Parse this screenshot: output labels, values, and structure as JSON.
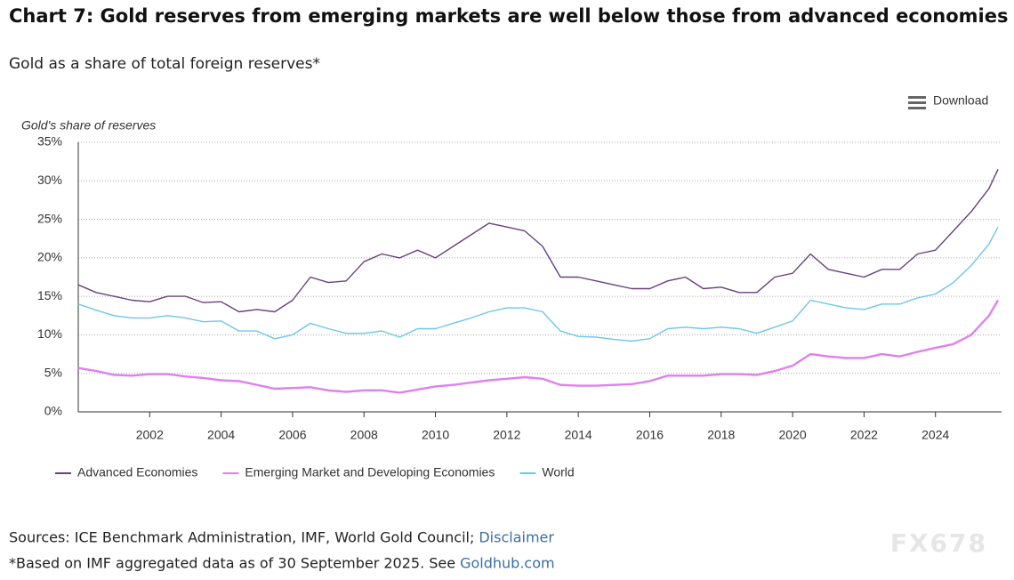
{
  "chart_data": {
    "type": "line",
    "title": "Chart 7: Gold reserves from emerging markets are well below those from advanced economies",
    "subtitle": "Gold as a share of total foreign reserves*",
    "ylabel": "Gold's share of reserves",
    "x": [
      2000,
      2000.5,
      2001,
      2001.5,
      2002,
      2002.5,
      2003,
      2003.5,
      2004,
      2004.5,
      2005,
      2005.5,
      2006,
      2006.5,
      2007,
      2007.5,
      2008,
      2008.5,
      2009,
      2009.5,
      2010,
      2010.5,
      2011,
      2011.5,
      2012,
      2012.5,
      2013,
      2013.5,
      2014,
      2014.5,
      2015,
      2015.5,
      2016,
      2016.5,
      2017,
      2017.5,
      2018,
      2018.5,
      2019,
      2019.5,
      2020,
      2020.5,
      2021,
      2021.5,
      2022,
      2022.5,
      2023,
      2023.5,
      2024,
      2024.5,
      2025,
      2025.5,
      2025.75
    ],
    "series": [
      {
        "name": "Advanced Economies",
        "color": "#6b3f7d",
        "width": 1.4,
        "values": [
          16.5,
          15.5,
          15,
          14.5,
          14.3,
          15,
          15,
          14.2,
          14.3,
          13,
          13.3,
          13,
          14.5,
          17.5,
          16.8,
          17,
          19.5,
          20.5,
          20,
          21,
          20,
          21.5,
          23,
          24.5,
          24,
          23.5,
          21.5,
          17.5,
          17.5,
          17,
          16.5,
          16,
          16,
          17,
          17.5,
          16,
          16.2,
          15.5,
          15.5,
          17.5,
          18,
          20.5,
          18.5,
          18,
          17.5,
          18.5,
          18.5,
          20.5,
          21,
          23.5,
          26,
          29,
          31.5
        ]
      },
      {
        "name": "Emerging Market and Developing Economies",
        "color": "#e07ff0",
        "width": 2.4,
        "values": [
          5.7,
          5.3,
          4.8,
          4.7,
          4.9,
          4.9,
          4.6,
          4.4,
          4.1,
          4.0,
          3.5,
          3.0,
          3.1,
          3.2,
          2.8,
          2.6,
          2.8,
          2.8,
          2.5,
          2.9,
          3.3,
          3.5,
          3.8,
          4.1,
          4.3,
          4.5,
          4.3,
          3.5,
          3.4,
          3.4,
          3.5,
          3.6,
          4.0,
          4.7,
          4.7,
          4.7,
          4.9,
          4.9,
          4.8,
          5.3,
          6.0,
          7.5,
          7.2,
          7.0,
          7.0,
          7.5,
          7.2,
          7.8,
          8.3,
          8.8,
          10.0,
          12.5,
          14.5
        ]
      },
      {
        "name": "World",
        "color": "#6ec6ea",
        "width": 1.4,
        "values": [
          14.0,
          13.2,
          12.5,
          12.2,
          12.2,
          12.5,
          12.2,
          11.7,
          11.8,
          10.5,
          10.5,
          9.5,
          10.0,
          11.5,
          10.8,
          10.2,
          10.2,
          10.5,
          9.7,
          10.8,
          10.8,
          11.5,
          12.2,
          13.0,
          13.5,
          13.5,
          13.0,
          10.5,
          9.8,
          9.7,
          9.4,
          9.2,
          9.5,
          10.8,
          11.0,
          10.8,
          11.0,
          10.8,
          10.2,
          11.0,
          11.8,
          14.5,
          14.0,
          13.5,
          13.3,
          14.0,
          14.0,
          14.8,
          15.3,
          16.8,
          19.0,
          21.8,
          24.0
        ]
      }
    ],
    "xlim": [
      2000,
      2025.85
    ],
    "xticks": [
      2002,
      2004,
      2006,
      2008,
      2010,
      2012,
      2014,
      2016,
      2018,
      2020,
      2022,
      2024
    ],
    "ylim": [
      0,
      35
    ],
    "yticks": [
      {
        "value": 0,
        "label": "0%"
      },
      {
        "value": 5,
        "label": "5%"
      },
      {
        "value": 10,
        "label": "10%"
      },
      {
        "value": 15,
        "label": "15%"
      },
      {
        "value": 20,
        "label": "20%"
      },
      {
        "value": 25,
        "label": "25%"
      },
      {
        "value": 30,
        "label": "30%"
      },
      {
        "value": 35,
        "label": "35%"
      }
    ],
    "grid": true
  },
  "download": "Download",
  "sources": {
    "text": "Sources: ICE Benchmark Administration, IMF, World Gold Council;",
    "link": "Disclaimer"
  },
  "note": {
    "text": "*Based on IMF aggregated data as of 30 September 2025. See",
    "link": "Goldhub.com"
  },
  "watermark": "FX678"
}
